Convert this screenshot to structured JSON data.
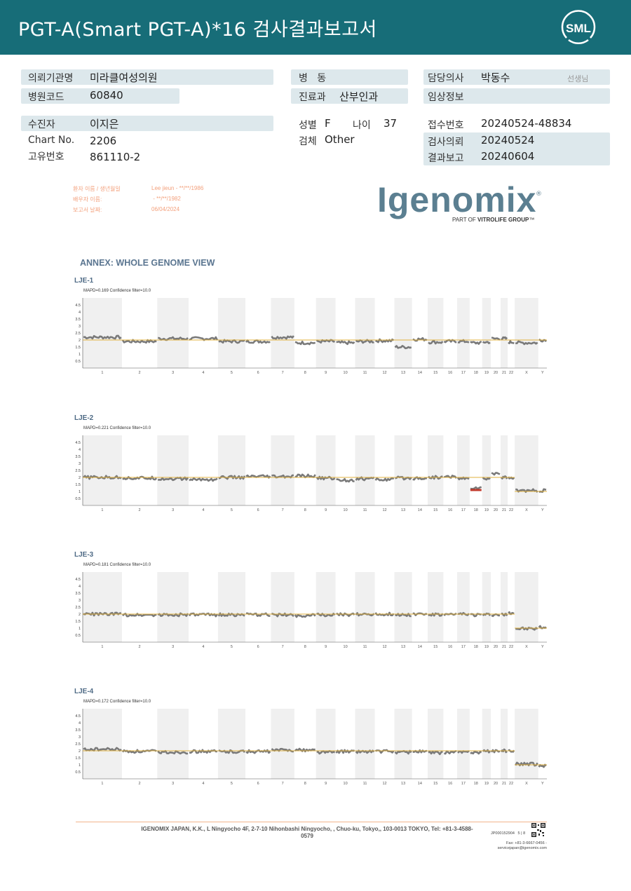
{
  "header": {
    "title": "PGT-A(Smart  PGT-A)*16 검사결과보고서",
    "logo_text": "SML",
    "background": "#176d78"
  },
  "info": {
    "institution_label": "의뢰기관명",
    "institution_value": "미라클여성의원",
    "hospital_code_label": "병원코드",
    "hospital_code_value": "60840",
    "ward_label": "병   동",
    "ward_value": "",
    "department_label": "진료과",
    "department_value": "산부인과",
    "doctor_label": "담당의사",
    "doctor_value": "박동수",
    "doctor_suffix": "선생님",
    "clinical_label": "임상정보",
    "clinical_value": "",
    "patient_label": "수진자",
    "patient_value": "이지은",
    "chart_label": "Chart No.",
    "chart_value": "2206",
    "id_label": "고유번호",
    "id_value": "861110-2",
    "sex_label": "성별",
    "sex_value": "F",
    "age_label": "나이",
    "age_value": "37",
    "specimen_label": "검체",
    "specimen_value": "Other",
    "receipt_label": "접수번호",
    "receipt_value": "20240524-48834",
    "request_label": "검사의뢰",
    "request_value": "20240524",
    "report_label": "결과보고",
    "report_value": "20240604"
  },
  "report_meta": {
    "patient_name_label": "환자 이름 / 생년월일",
    "patient_name_value": "Lee jieun - **/**/1986",
    "partner_label": "배우자 이름:",
    "partner_value": " - **/**/1982",
    "report_date_label": "보고서 날짜:",
    "report_date_value": "06/04/2024"
  },
  "igenomix": {
    "logo": "Igenomix",
    "reg": "®",
    "sub_prefix": "PART OF ",
    "sub_bold": "VITROLIFE GROUP",
    "sub_tm": "™"
  },
  "annex_title": "ANNEX: WHOLE GENOME VIEW",
  "chart_data": {
    "type": "line",
    "y_ticks": [
      "4.5",
      "4",
      "3.5",
      "3",
      "2.5",
      "2",
      "1.5",
      "1",
      "0.5"
    ],
    "ylim": [
      0,
      5
    ],
    "chromosomes": [
      "1",
      "2",
      "3",
      "4",
      "5",
      "6",
      "7",
      "8",
      "9",
      "10",
      "11",
      "12",
      "13",
      "14",
      "15",
      "16",
      "17",
      "18",
      "19",
      "20",
      "21",
      "22",
      "X",
      "Y"
    ],
    "reference_copy_number": 2,
    "colors": {
      "data": "#7a7a7a",
      "reference": "#e0b03c",
      "band": "#f0f0f0",
      "loss": "#c0392b"
    },
    "panels": [
      {
        "title": "LJE-1",
        "meta": "MAPD=0.169 Confidence filter=10.0",
        "levels": [
          2.2,
          1.9,
          2.1,
          2.1,
          1.9,
          1.9,
          2.2,
          1.8,
          1.9,
          1.8,
          1.9,
          1.95,
          1.5,
          2.05,
          1.85,
          1.9,
          1.9,
          1.8,
          1.85,
          2.1,
          2.1,
          1.85,
          1.8,
          2.0
        ],
        "loss_marks": []
      },
      {
        "title": "LJE-2",
        "meta": "MAPD=0.221 Confidence filter=10.0",
        "levels": [
          2.0,
          1.95,
          1.9,
          1.85,
          2.0,
          2.05,
          2.05,
          2.1,
          1.95,
          1.8,
          1.9,
          1.85,
          1.95,
          1.95,
          2.0,
          2.05,
          1.9,
          1.25,
          1.9,
          2.3,
          2.0,
          1.95,
          1.05,
          1.05
        ],
        "loss_marks": [
          {
            "chromosome": "18",
            "value": 1.1
          }
        ]
      },
      {
        "title": "LJE-3",
        "meta": "MAPD=0.181 Confidence filter=10.0",
        "levels": [
          2.0,
          1.95,
          1.95,
          1.95,
          1.95,
          1.95,
          1.95,
          1.9,
          1.95,
          1.95,
          2.0,
          2.0,
          1.95,
          2.0,
          1.95,
          1.95,
          2.0,
          1.95,
          1.95,
          1.95,
          1.95,
          2.1,
          0.95,
          1.05
        ],
        "loss_marks": []
      },
      {
        "title": "LJE-4",
        "meta": "MAPD=0.172 Confidence filter=10.0",
        "levels": [
          2.1,
          1.95,
          1.9,
          1.95,
          1.95,
          1.95,
          2.05,
          2.05,
          1.9,
          1.95,
          1.95,
          1.95,
          1.9,
          1.95,
          1.85,
          1.9,
          1.9,
          1.9,
          1.95,
          2.0,
          2.0,
          1.95,
          1.05,
          0.95
        ],
        "loss_marks": []
      }
    ]
  },
  "footer": {
    "address": "IGENOMIX JAPAN, K.K., L Ningyocho 4F, 2-7-10 Nihonbashi Ningyocho, , Chuo-ku, Tokyo,, 103-0013 TOKYO, Tel: +81-3-4588-0579",
    "code": "JP000152904",
    "page": "5 | 8",
    "fax": "Fax: +81-3-6667-0456 -",
    "email": "servicejapan@igenomix.com"
  }
}
